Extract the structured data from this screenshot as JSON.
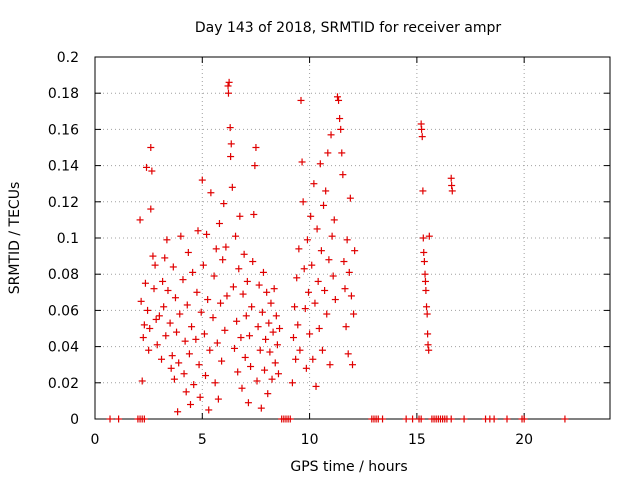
{
  "chart_data": {
    "type": "scatter",
    "title": "Day 143 of 2018, SRMTID for receiver ampr",
    "xlabel": "GPS time / hours",
    "ylabel": "SRMTID / TECUs",
    "xlim": [
      0,
      24
    ],
    "ylim": [
      0,
      0.2
    ],
    "x_ticks": [
      0,
      5,
      10,
      15,
      20
    ],
    "y_ticks": [
      0,
      0.02,
      0.04,
      0.06,
      0.08,
      0.1,
      0.12,
      0.14,
      0.16,
      0.18,
      0.2
    ],
    "grid": true,
    "marker": "plus",
    "color": "#e00000",
    "series": [
      {
        "name": "SRMTID",
        "points": [
          [
            2.1,
            0.11
          ],
          [
            2.15,
            0.065
          ],
          [
            2.2,
            0.021
          ],
          [
            2.25,
            0.045
          ],
          [
            2.3,
            0.052
          ],
          [
            2.35,
            0.075
          ],
          [
            2.4,
            0.139
          ],
          [
            2.45,
            0.06
          ],
          [
            2.5,
            0.038
          ],
          [
            2.55,
            0.05
          ],
          [
            2.6,
            0.116
          ],
          [
            2.6,
            0.15
          ],
          [
            2.65,
            0.137
          ],
          [
            2.7,
            0.09
          ],
          [
            2.75,
            0.072
          ],
          [
            2.8,
            0.085
          ],
          [
            2.85,
            0.055
          ],
          [
            2.9,
            0.041
          ],
          [
            3.0,
            0.057
          ],
          [
            3.1,
            0.033
          ],
          [
            3.15,
            0.076
          ],
          [
            3.2,
            0.062
          ],
          [
            3.25,
            0.089
          ],
          [
            3.3,
            0.046
          ],
          [
            3.35,
            0.099
          ],
          [
            3.4,
            0.071
          ],
          [
            3.5,
            0.053
          ],
          [
            3.55,
            0.028
          ],
          [
            3.6,
            0.035
          ],
          [
            3.65,
            0.084
          ],
          [
            3.7,
            0.022
          ],
          [
            3.75,
            0.067
          ],
          [
            3.8,
            0.048
          ],
          [
            3.85,
            0.004
          ],
          [
            3.9,
            0.031
          ],
          [
            3.95,
            0.058
          ],
          [
            4.0,
            0.101
          ],
          [
            4.1,
            0.077
          ],
          [
            4.15,
            0.025
          ],
          [
            4.2,
            0.043
          ],
          [
            4.25,
            0.015
          ],
          [
            4.3,
            0.063
          ],
          [
            4.35,
            0.092
          ],
          [
            4.4,
            0.036
          ],
          [
            4.45,
            0.008
          ],
          [
            4.5,
            0.051
          ],
          [
            4.55,
            0.081
          ],
          [
            4.6,
            0.019
          ],
          [
            4.7,
            0.044
          ],
          [
            4.75,
            0.07
          ],
          [
            4.8,
            0.104
          ],
          [
            4.85,
            0.03
          ],
          [
            4.9,
            0.012
          ],
          [
            4.95,
            0.059
          ],
          [
            5.0,
            0.132
          ],
          [
            5.05,
            0.085
          ],
          [
            5.1,
            0.047
          ],
          [
            5.15,
            0.024
          ],
          [
            5.2,
            0.102
          ],
          [
            5.25,
            0.066
          ],
          [
            5.3,
            0.005
          ],
          [
            5.35,
            0.038
          ],
          [
            5.4,
            0.125
          ],
          [
            5.5,
            0.056
          ],
          [
            5.55,
            0.079
          ],
          [
            5.6,
            0.02
          ],
          [
            5.65,
            0.094
          ],
          [
            5.7,
            0.042
          ],
          [
            5.75,
            0.011
          ],
          [
            5.8,
            0.108
          ],
          [
            5.85,
            0.064
          ],
          [
            5.9,
            0.032
          ],
          [
            5.95,
            0.088
          ],
          [
            6.0,
            0.119
          ],
          [
            6.05,
            0.049
          ],
          [
            6.1,
            0.095
          ],
          [
            6.15,
            0.068
          ],
          [
            6.2,
            0.184
          ],
          [
            6.22,
            0.18
          ],
          [
            6.25,
            0.186
          ],
          [
            6.3,
            0.161
          ],
          [
            6.32,
            0.145
          ],
          [
            6.35,
            0.152
          ],
          [
            6.4,
            0.128
          ],
          [
            6.45,
            0.073
          ],
          [
            6.5,
            0.039
          ],
          [
            6.55,
            0.101
          ],
          [
            6.6,
            0.054
          ],
          [
            6.65,
            0.026
          ],
          [
            6.7,
            0.083
          ],
          [
            6.75,
            0.112
          ],
          [
            6.8,
            0.045
          ],
          [
            6.85,
            0.017
          ],
          [
            6.9,
            0.069
          ],
          [
            6.95,
            0.091
          ],
          [
            7.0,
            0.034
          ],
          [
            7.05,
            0.057
          ],
          [
            7.1,
            0.076
          ],
          [
            7.15,
            0.009
          ],
          [
            7.2,
            0.046
          ],
          [
            7.25,
            0.029
          ],
          [
            7.3,
            0.062
          ],
          [
            7.35,
            0.087
          ],
          [
            7.4,
            0.113
          ],
          [
            7.45,
            0.14
          ],
          [
            7.5,
            0.15
          ],
          [
            7.55,
            0.021
          ],
          [
            7.6,
            0.051
          ],
          [
            7.65,
            0.074
          ],
          [
            7.7,
            0.038
          ],
          [
            7.75,
            0.006
          ],
          [
            7.8,
            0.059
          ],
          [
            7.85,
            0.081
          ],
          [
            7.9,
            0.027
          ],
          [
            7.95,
            0.044
          ],
          [
            8.0,
            0.07
          ],
          [
            8.05,
            0.014
          ],
          [
            8.1,
            0.053
          ],
          [
            8.15,
            0.037
          ],
          [
            8.2,
            0.064
          ],
          [
            8.25,
            0.022
          ],
          [
            8.3,
            0.048
          ],
          [
            8.35,
            0.072
          ],
          [
            8.4,
            0.031
          ],
          [
            8.45,
            0.057
          ],
          [
            8.5,
            0.041
          ],
          [
            8.55,
            0.025
          ],
          [
            8.6,
            0.05
          ],
          [
            9.2,
            0.02
          ],
          [
            9.25,
            0.045
          ],
          [
            9.3,
            0.062
          ],
          [
            9.35,
            0.033
          ],
          [
            9.4,
            0.078
          ],
          [
            9.45,
            0.052
          ],
          [
            9.5,
            0.094
          ],
          [
            9.55,
            0.038
          ],
          [
            9.6,
            0.176
          ],
          [
            9.65,
            0.142
          ],
          [
            9.7,
            0.12
          ],
          [
            9.75,
            0.083
          ],
          [
            9.8,
            0.061
          ],
          [
            9.85,
            0.028
          ],
          [
            9.9,
            0.099
          ],
          [
            9.95,
            0.07
          ],
          [
            10.0,
            0.047
          ],
          [
            10.05,
            0.112
          ],
          [
            10.1,
            0.085
          ],
          [
            10.15,
            0.033
          ],
          [
            10.2,
            0.13
          ],
          [
            10.25,
            0.064
          ],
          [
            10.3,
            0.018
          ],
          [
            10.35,
            0.105
          ],
          [
            10.4,
            0.076
          ],
          [
            10.45,
            0.05
          ],
          [
            10.5,
            0.141
          ],
          [
            10.55,
            0.093
          ],
          [
            10.6,
            0.038
          ],
          [
            10.65,
            0.118
          ],
          [
            10.7,
            0.071
          ],
          [
            10.75,
            0.126
          ],
          [
            10.8,
            0.058
          ],
          [
            10.85,
            0.147
          ],
          [
            10.9,
            0.088
          ],
          [
            10.95,
            0.03
          ],
          [
            11.0,
            0.157
          ],
          [
            11.05,
            0.101
          ],
          [
            11.1,
            0.079
          ],
          [
            11.15,
            0.11
          ],
          [
            11.2,
            0.066
          ],
          [
            11.3,
            0.178
          ],
          [
            11.35,
            0.176
          ],
          [
            11.4,
            0.166
          ],
          [
            11.45,
            0.16
          ],
          [
            11.5,
            0.147
          ],
          [
            11.55,
            0.135
          ],
          [
            11.6,
            0.087
          ],
          [
            11.65,
            0.072
          ],
          [
            11.7,
            0.051
          ],
          [
            11.75,
            0.099
          ],
          [
            11.8,
            0.036
          ],
          [
            11.85,
            0.081
          ],
          [
            11.9,
            0.122
          ],
          [
            11.95,
            0.068
          ],
          [
            12.0,
            0.03
          ],
          [
            12.05,
            0.058
          ],
          [
            12.1,
            0.093
          ],
          [
            15.2,
            0.163
          ],
          [
            15.22,
            0.16
          ],
          [
            15.25,
            0.156
          ],
          [
            15.28,
            0.126
          ],
          [
            15.3,
            0.1
          ],
          [
            15.32,
            0.092
          ],
          [
            15.35,
            0.087
          ],
          [
            15.38,
            0.08
          ],
          [
            15.4,
            0.076
          ],
          [
            15.42,
            0.071
          ],
          [
            15.45,
            0.062
          ],
          [
            15.48,
            0.058
          ],
          [
            15.5,
            0.047
          ],
          [
            15.52,
            0.041
          ],
          [
            15.55,
            0.038
          ],
          [
            15.58,
            0.101
          ],
          [
            16.6,
            0.133
          ],
          [
            16.62,
            0.129
          ],
          [
            16.65,
            0.126
          ]
        ]
      }
    ],
    "zero_markers_x": [
      0.7,
      1.1,
      2.0,
      2.1,
      2.2,
      2.3,
      8.7,
      8.8,
      8.9,
      9.0,
      9.1,
      12.9,
      13.0,
      13.1,
      13.2,
      13.4,
      14.5,
      14.8,
      15.1,
      15.2,
      15.7,
      15.8,
      15.9,
      16.0,
      16.1,
      16.2,
      16.3,
      16.4,
      16.6,
      17.2,
      18.2,
      18.4,
      18.6,
      19.2,
      19.9,
      20.0,
      21.9
    ]
  }
}
